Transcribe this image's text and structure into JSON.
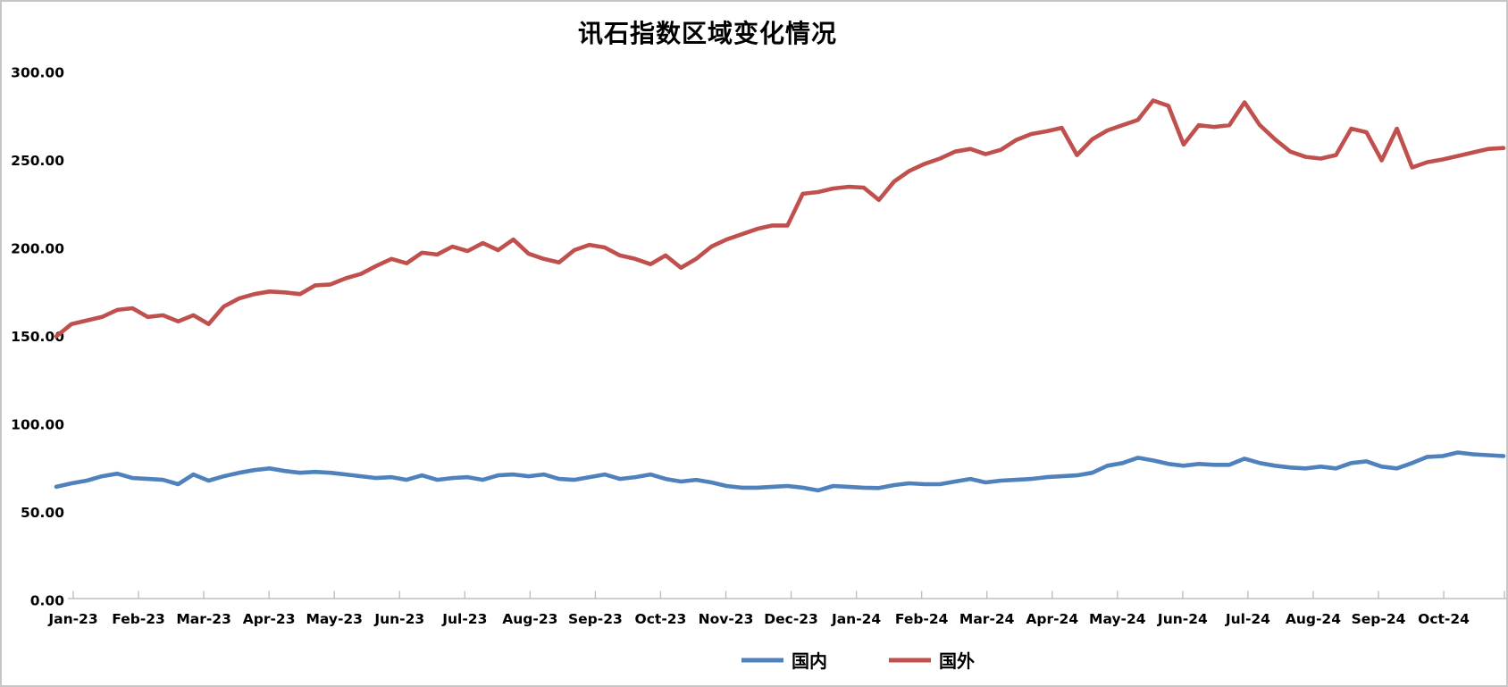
{
  "title": "讯石指数区域变化情况",
  "chart_data": {
    "type": "line",
    "title": "讯石指数区域变化情况",
    "grid": false,
    "legend_position": "bottom",
    "axis_color": "#bfbfbf",
    "ylim": [
      0,
      300
    ],
    "y_ticks": [
      0,
      50,
      100,
      150,
      200,
      250,
      300
    ],
    "y_tick_labels": [
      "0.00",
      "50.00",
      "100.00",
      "150.00",
      "200.00",
      "250.00",
      "300.00"
    ],
    "x_tick_labels": [
      "Jan-23",
      "Feb-23",
      "Mar-23",
      "Apr-23",
      "May-23",
      "Jun-23",
      "Jul-23",
      "Aug-23",
      "Sep-23",
      "Oct-23",
      "Nov-23",
      "Dec-23",
      "Jan-24",
      "Feb-24",
      "Mar-24",
      "Apr-24",
      "May-24",
      "Jun-24",
      "Jul-24",
      "Aug-24",
      "Sep-24",
      "Oct-24"
    ],
    "x_unit": "week",
    "series": [
      {
        "name": "国内",
        "color": "#4F81BD",
        "values": [
          64.5,
          66.5,
          68,
          70.5,
          72,
          69.5,
          69,
          68.5,
          66,
          71.5,
          68,
          70.5,
          72.5,
          74,
          75,
          73.5,
          72.5,
          73,
          72.5,
          71.5,
          70.5,
          69.5,
          70,
          68.5,
          71,
          68.5,
          69.5,
          70,
          68.5,
          71,
          71.5,
          70.5,
          71.5,
          69,
          68.5,
          70,
          71.5,
          69,
          70,
          71.5,
          69,
          67.5,
          68.5,
          67,
          65,
          64,
          64,
          64.5,
          65,
          64,
          62.5,
          65,
          64.5,
          64,
          63.8,
          65.5,
          66.5,
          66,
          66,
          67.5,
          69,
          67,
          68,
          68.5,
          69,
          70,
          70.5,
          71,
          72.5,
          76.5,
          78,
          81,
          79.5,
          77.5,
          76.5,
          77.5,
          77,
          77,
          80.5,
          78,
          76.5,
          75.5,
          75,
          76,
          75,
          78,
          79,
          76,
          75,
          78,
          81.5,
          82,
          84,
          83,
          82.5,
          82
        ]
      },
      {
        "name": "国外",
        "color": "#C0504D",
        "values": [
          150,
          157,
          159,
          161,
          165,
          166,
          161,
          162,
          158.5,
          162,
          157,
          167,
          171.5,
          174,
          175.5,
          175,
          174,
          179,
          179.5,
          183,
          185.5,
          190,
          194,
          191.5,
          197.5,
          196.5,
          201,
          198.5,
          203,
          199,
          205,
          197,
          194,
          192,
          199,
          202,
          200.5,
          196,
          194,
          191,
          196,
          189,
          194,
          201,
          205,
          208,
          211,
          213,
          213,
          231,
          232,
          234,
          235,
          234.5,
          227.5,
          238,
          244,
          248,
          251,
          255,
          256.5,
          253.5,
          256,
          261.5,
          265,
          266.5,
          268.5,
          253,
          262,
          267,
          270,
          273,
          284,
          281,
          259,
          270,
          269,
          270,
          283,
          270,
          262,
          255,
          252,
          251,
          253,
          268,
          266,
          250,
          268,
          246,
          249,
          250.5,
          252.5,
          254.5,
          256.5,
          257
        ]
      }
    ]
  }
}
